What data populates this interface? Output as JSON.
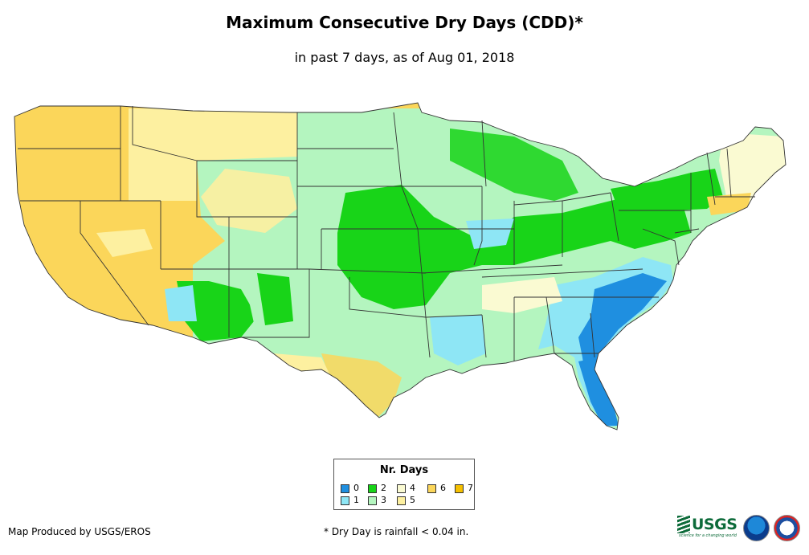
{
  "title": "Maximum Consecutive Dry Days (CDD)*",
  "subtitle": "in past 7 days, as of Aug 01, 2018",
  "legend": {
    "title": "Nr. Days",
    "items": [
      {
        "label": "0",
        "color": "#1f8fe0"
      },
      {
        "label": "1",
        "color": "#8ee6f5"
      },
      {
        "label": "2",
        "color": "#18d418"
      },
      {
        "label": "3",
        "color": "#b4f5bf"
      },
      {
        "label": "4",
        "color": "#fafad2"
      },
      {
        "label": "5",
        "color": "#fdf0a0"
      },
      {
        "label": "6",
        "color": "#fbd65a"
      },
      {
        "label": "7",
        "color": "#f5c000"
      }
    ]
  },
  "credit": "Map Produced by USGS/EROS",
  "footnote": "* Dry Day is rainfall < 0.04 in.",
  "logos": {
    "usgs_text": "USGS",
    "usgs_tagline": "science for a changing world",
    "usgs_icon": "usgs-logo-icon",
    "noaa_icon": "noaa-logo-icon",
    "nws_icon": "nws-logo-icon"
  },
  "colors": {
    "state_border": "#333333",
    "background": "#ffffff"
  }
}
